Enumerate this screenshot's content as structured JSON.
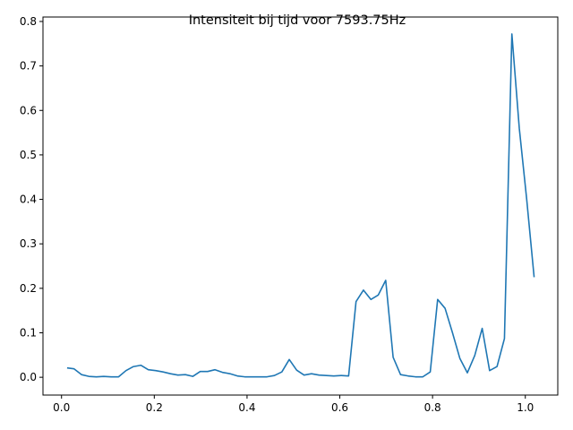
{
  "chart_data": {
    "type": "line",
    "title": "Intensiteit bij tijd voor 7593.75Hz",
    "xlabel": "",
    "ylabel": "",
    "xlim": [
      -0.04,
      1.07
    ],
    "ylim": [
      -0.04,
      0.81
    ],
    "grid": false,
    "x_ticks": [
      0.0,
      0.2,
      0.4,
      0.6,
      0.8,
      1.0
    ],
    "x_tick_labels": [
      "0.0",
      "0.2",
      "0.4",
      "0.6",
      "0.8",
      "1.0"
    ],
    "y_ticks": [
      0.0,
      0.1,
      0.2,
      0.3,
      0.4,
      0.5,
      0.6,
      0.7,
      0.8
    ],
    "y_tick_labels": [
      "0.0",
      "0.1",
      "0.2",
      "0.3",
      "0.4",
      "0.5",
      "0.6",
      "0.7",
      "0.8"
    ],
    "series": [
      {
        "color": "#1f77b4",
        "x": [
          0.012,
          0.027,
          0.043,
          0.059,
          0.075,
          0.091,
          0.107,
          0.123,
          0.139,
          0.155,
          0.171,
          0.187,
          0.203,
          0.219,
          0.235,
          0.251,
          0.267,
          0.283,
          0.299,
          0.315,
          0.331,
          0.347,
          0.363,
          0.379,
          0.395,
          0.411,
          0.427,
          0.443,
          0.459,
          0.475,
          0.491,
          0.507,
          0.523,
          0.539,
          0.555,
          0.571,
          0.587,
          0.603,
          0.619,
          0.635,
          0.651,
          0.667,
          0.683,
          0.699,
          0.715,
          0.731,
          0.747,
          0.763,
          0.779,
          0.795,
          0.811,
          0.827,
          0.843,
          0.859,
          0.875,
          0.891,
          0.907,
          0.923,
          0.939,
          0.955,
          0.971,
          0.987,
          1.003,
          1.019
        ],
        "y": [
          0.021,
          0.019,
          0.006,
          0.002,
          0.001,
          0.002,
          0.001,
          0.001,
          0.015,
          0.024,
          0.027,
          0.017,
          0.015,
          0.012,
          0.008,
          0.005,
          0.006,
          0.002,
          0.013,
          0.013,
          0.017,
          0.011,
          0.008,
          0.003,
          0.001,
          0.001,
          0.001,
          0.001,
          0.004,
          0.012,
          0.04,
          0.016,
          0.005,
          0.008,
          0.005,
          0.004,
          0.003,
          0.004,
          0.003,
          0.17,
          0.196,
          0.175,
          0.185,
          0.218,
          0.045,
          0.006,
          0.003,
          0.001,
          0.001,
          0.012,
          0.175,
          0.155,
          0.1,
          0.042,
          0.01,
          0.049,
          0.11,
          0.015,
          0.024,
          0.087,
          0.772,
          0.56,
          0.4,
          0.225
        ]
      }
    ]
  }
}
